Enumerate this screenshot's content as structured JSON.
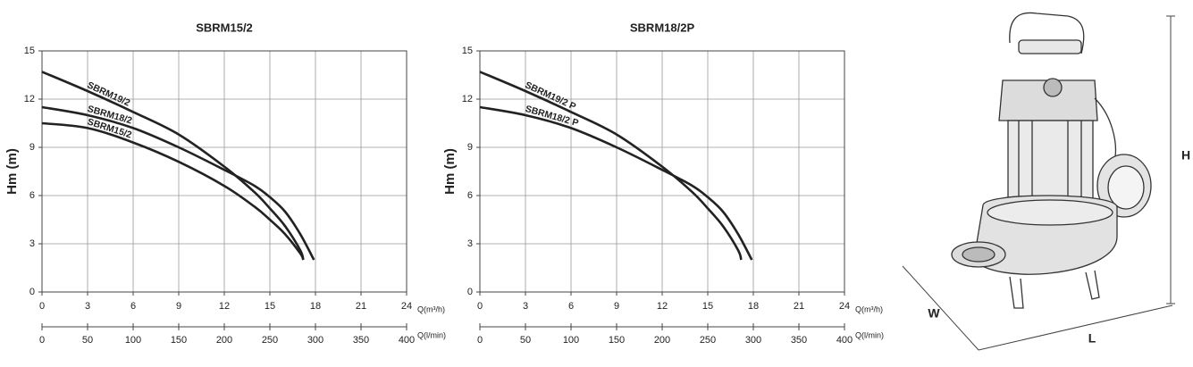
{
  "chart_data": [
    {
      "type": "line",
      "title": "SBRM15/2",
      "ylabel": "Hm (m)",
      "xlabel": "Q(m³/h)",
      "x2label": "Q(l/min)",
      "xlim": [
        0,
        24
      ],
      "xticks": [
        0,
        3,
        6,
        9,
        12,
        15,
        18,
        21,
        24
      ],
      "x2lim": [
        0,
        400
      ],
      "x2ticks": [
        0,
        50,
        100,
        150,
        200,
        250,
        300,
        350,
        400
      ],
      "ylim": [
        0,
        15
      ],
      "yticks": [
        0,
        3,
        6,
        9,
        12,
        15
      ],
      "grid": true,
      "series": [
        {
          "name": "SBRM19/2",
          "color": "#222222",
          "x": [
            0,
            3,
            6,
            9,
            12,
            14,
            15,
            16,
            17,
            17.2
          ],
          "values": [
            13.7,
            12.5,
            11.2,
            9.8,
            7.8,
            6.2,
            5.2,
            4.1,
            2.6,
            2.0
          ]
        },
        {
          "name": "SBRM18/2",
          "color": "#222222",
          "x": [
            0,
            3,
            6,
            9,
            12,
            14,
            15,
            16,
            17,
            17.9
          ],
          "values": [
            11.5,
            11.0,
            10.2,
            9.0,
            7.6,
            6.6,
            5.9,
            5.0,
            3.6,
            2.0
          ]
        },
        {
          "name": "SBRM15/2",
          "color": "#222222",
          "x": [
            0,
            3,
            6,
            9,
            12,
            14,
            15,
            16,
            17,
            17.2
          ],
          "values": [
            10.5,
            10.2,
            9.3,
            8.1,
            6.6,
            5.3,
            4.5,
            3.6,
            2.4,
            2.0
          ]
        }
      ]
    },
    {
      "type": "line",
      "title": "SBRM18/2P",
      "ylabel": "Hm (m)",
      "xlabel": "Q(m³/h)",
      "x2label": "Q(l/min)",
      "xlim": [
        0,
        24
      ],
      "xticks": [
        0,
        3,
        6,
        9,
        12,
        15,
        18,
        21,
        24
      ],
      "x2lim": [
        0,
        400
      ],
      "x2ticks": [
        0,
        50,
        100,
        150,
        200,
        250,
        300,
        350,
        400
      ],
      "ylim": [
        0,
        15
      ],
      "yticks": [
        0,
        3,
        6,
        9,
        12,
        15
      ],
      "grid": true,
      "series": [
        {
          "name": "SBRM19/2 P",
          "color": "#222222",
          "x": [
            0,
            3,
            6,
            9,
            12,
            14,
            15,
            16,
            17,
            17.2
          ],
          "values": [
            13.7,
            12.5,
            11.2,
            9.8,
            7.8,
            6.2,
            5.2,
            4.1,
            2.6,
            2.0
          ]
        },
        {
          "name": "SBRM18/2 P",
          "color": "#222222",
          "x": [
            0,
            3,
            6,
            9,
            12,
            14,
            15,
            16,
            17,
            17.9
          ],
          "values": [
            11.5,
            11.0,
            10.2,
            9.0,
            7.6,
            6.6,
            5.9,
            5.0,
            3.6,
            2.0
          ]
        }
      ]
    }
  ],
  "dimensions": {
    "height": "H",
    "width": "W",
    "length": "L"
  }
}
